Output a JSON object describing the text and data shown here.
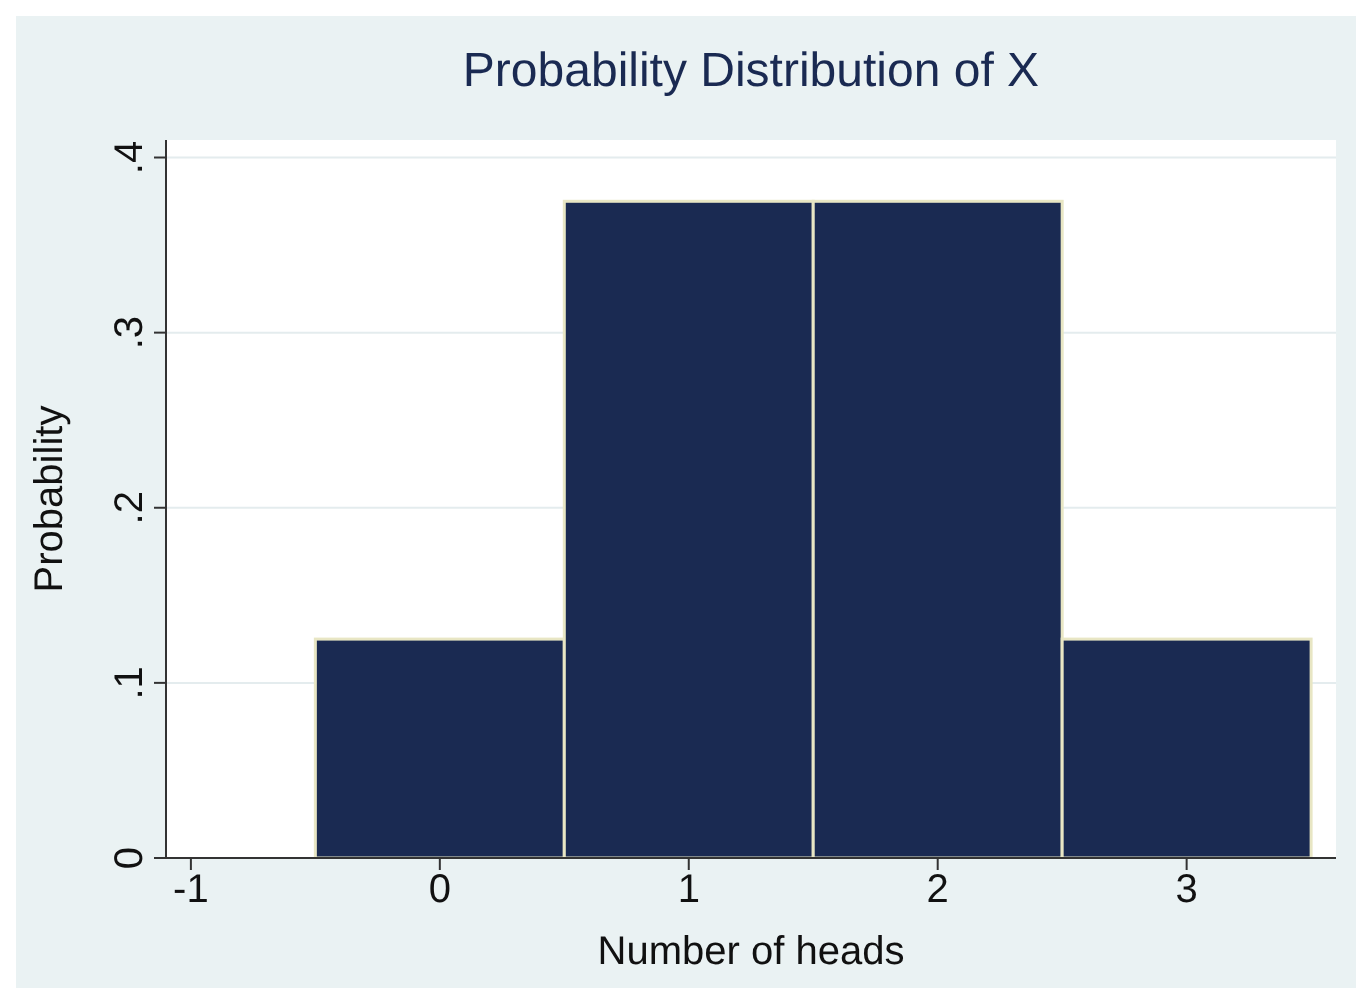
{
  "chart_data": {
    "type": "histogram",
    "title": "Probability Distribution of X",
    "xlabel": "Number of heads",
    "ylabel": "Probability",
    "bins": [
      -0.5,
      0.5,
      1.5,
      2.5,
      3.5
    ],
    "values": [
      0.125,
      0.375,
      0.375,
      0.125
    ],
    "color": "#1a2a52",
    "xlim": [
      -1.1,
      3.6
    ],
    "xticks": [
      -1,
      0,
      1,
      2,
      3
    ],
    "ylim": [
      0,
      0.41
    ],
    "yticks": [
      {
        "value": 0,
        "label": "0"
      },
      {
        "value": 0.1,
        "label": ".1"
      },
      {
        "value": 0.2,
        "label": ".2"
      },
      {
        "value": 0.3,
        "label": ".3"
      },
      {
        "value": 0.4,
        "label": ".4"
      }
    ],
    "grid": "y"
  }
}
